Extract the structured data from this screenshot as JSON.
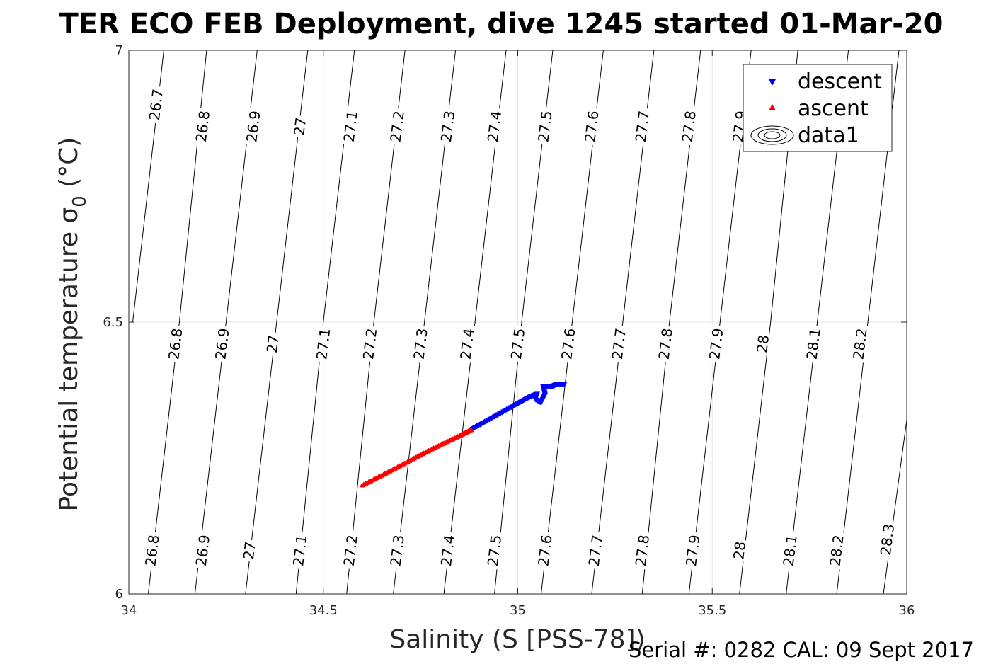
{
  "title": "TER ECO FEB Deployment, dive 1245 started 01-Mar-20",
  "footer": "Serial #: 0282  CAL: 09 Sept 2017",
  "colors": {
    "descent": "#0000ff",
    "ascent": "#ff0000",
    "contour": "#000000",
    "grid": "#e6e6e6"
  },
  "chart_data": {
    "type": "scatter",
    "xlabel": "Salinity (S [PSS-78])",
    "ylabel": "Potential temperature σ0 (°C)",
    "xlim": [
      34,
      36
    ],
    "ylim": [
      6,
      7
    ],
    "xticks": [
      34,
      34.5,
      35,
      35.5,
      36
    ],
    "xtick_labels": [
      "34",
      "34.5",
      "35",
      "35.5",
      "36"
    ],
    "yticks": [
      6,
      6.5,
      7
    ],
    "ytick_labels": [
      "6",
      "6.5",
      "7"
    ],
    "grid": true,
    "legend_placement": "top-right",
    "legend": [
      "descent",
      "ascent",
      "data1"
    ],
    "series": [
      {
        "name": "descent",
        "marker": "triangle-down",
        "color": "#0000ff",
        "points": [
          [
            34.88,
            6.302
          ],
          [
            34.92,
            6.318
          ],
          [
            34.96,
            6.334
          ],
          [
            35.0,
            6.35
          ],
          [
            35.03,
            6.362
          ],
          [
            35.05,
            6.368
          ],
          [
            35.045,
            6.358
          ],
          [
            35.06,
            6.352
          ],
          [
            35.07,
            6.366
          ],
          [
            35.065,
            6.382
          ],
          [
            35.09,
            6.382
          ],
          [
            35.1,
            6.386
          ],
          [
            35.12,
            6.386
          ]
        ]
      },
      {
        "name": "ascent",
        "marker": "triangle-up",
        "color": "#ff0000",
        "points": [
          [
            34.6,
            6.2
          ],
          [
            34.65,
            6.218
          ],
          [
            34.7,
            6.237
          ],
          [
            34.75,
            6.256
          ],
          [
            34.8,
            6.274
          ],
          [
            34.85,
            6.291
          ],
          [
            34.88,
            6.302
          ]
        ]
      }
    ],
    "contours": [
      {
        "level": "26.7",
        "line": [
          [
            34.01,
            6.5
          ],
          [
            34.09,
            7.0
          ]
        ]
      },
      {
        "level": "26.8",
        "line": [
          [
            34.05,
            6.0
          ],
          [
            34.13,
            6.5
          ],
          [
            34.2,
            7.0
          ]
        ]
      },
      {
        "level": "26.9",
        "line": [
          [
            34.17,
            6.0
          ],
          [
            34.25,
            6.5
          ],
          [
            34.33,
            7.0
          ]
        ]
      },
      {
        "level": "27",
        "line": [
          [
            34.3,
            6.0
          ],
          [
            34.38,
            6.5
          ],
          [
            34.46,
            7.0
          ]
        ]
      },
      {
        "level": "27.1",
        "line": [
          [
            34.43,
            6.0
          ],
          [
            34.5,
            6.5
          ],
          [
            34.58,
            7.0
          ]
        ]
      },
      {
        "level": "27.2",
        "line": [
          [
            34.56,
            6.0
          ],
          [
            34.63,
            6.5
          ],
          [
            34.71,
            7.0
          ]
        ]
      },
      {
        "level": "27.3",
        "line": [
          [
            34.68,
            6.0
          ],
          [
            34.76,
            6.5
          ],
          [
            34.84,
            7.0
          ]
        ]
      },
      {
        "level": "27.4",
        "line": [
          [
            34.81,
            6.0
          ],
          [
            34.89,
            6.5
          ],
          [
            34.97,
            7.0
          ]
        ]
      },
      {
        "level": "27.5",
        "line": [
          [
            34.94,
            6.0
          ],
          [
            35.01,
            6.5
          ],
          [
            35.09,
            7.0
          ]
        ]
      },
      {
        "level": "27.6",
        "line": [
          [
            35.06,
            6.0
          ],
          [
            35.14,
            6.5
          ],
          [
            35.22,
            7.0
          ]
        ]
      },
      {
        "level": "27.7",
        "line": [
          [
            35.19,
            6.0
          ],
          [
            35.27,
            6.5
          ],
          [
            35.35,
            7.0
          ]
        ]
      },
      {
        "level": "27.8",
        "line": [
          [
            35.32,
            6.0
          ],
          [
            35.39,
            6.5
          ],
          [
            35.47,
            7.0
          ]
        ]
      },
      {
        "level": "27.9",
        "line": [
          [
            35.44,
            6.0
          ],
          [
            35.52,
            6.5
          ],
          [
            35.6,
            7.0
          ]
        ]
      },
      {
        "level": "28",
        "line": [
          [
            35.57,
            6.0
          ],
          [
            35.65,
            6.5
          ],
          [
            35.72,
            7.0
          ]
        ]
      },
      {
        "level": "28.1",
        "line": [
          [
            35.69,
            6.0
          ],
          [
            35.77,
            6.5
          ],
          [
            35.85,
            7.0
          ]
        ]
      },
      {
        "level": "28.2",
        "line": [
          [
            35.82,
            6.0
          ],
          [
            35.9,
            6.5
          ],
          [
            35.98,
            7.0
          ]
        ]
      },
      {
        "level": "28.3",
        "line": [
          [
            35.94,
            6.0
          ],
          [
            36.0,
            6.32
          ]
        ]
      }
    ],
    "contour_labels": [
      {
        "text": "26.7",
        "at": [
          34.07,
          6.9
        ]
      },
      {
        "text": "26.8",
        "at": [
          34.19,
          6.86
        ]
      },
      {
        "text": "26.9",
        "at": [
          34.32,
          6.86
        ]
      },
      {
        "text": "27",
        "at": [
          34.44,
          6.86
        ]
      },
      {
        "text": "27.1",
        "at": [
          34.57,
          6.86
        ]
      },
      {
        "text": "27.2",
        "at": [
          34.69,
          6.86
        ]
      },
      {
        "text": "27.3",
        "at": [
          34.82,
          6.86
        ]
      },
      {
        "text": "27.4",
        "at": [
          34.94,
          6.86
        ]
      },
      {
        "text": "27.5",
        "at": [
          35.07,
          6.86
        ]
      },
      {
        "text": "27.6",
        "at": [
          35.19,
          6.86
        ]
      },
      {
        "text": "27.7",
        "at": [
          35.32,
          6.86
        ]
      },
      {
        "text": "27.8",
        "at": [
          35.44,
          6.86
        ]
      },
      {
        "text": "27.9",
        "at": [
          35.57,
          6.86
        ]
      },
      {
        "text": "28.2",
        "at": [
          35.94,
          6.86
        ]
      },
      {
        "text": "26.8",
        "at": [
          34.12,
          6.46
        ]
      },
      {
        "text": "26.9",
        "at": [
          34.24,
          6.46
        ]
      },
      {
        "text": "27",
        "at": [
          34.37,
          6.46
        ]
      },
      {
        "text": "27.1",
        "at": [
          34.5,
          6.46
        ]
      },
      {
        "text": "27.2",
        "at": [
          34.62,
          6.46
        ]
      },
      {
        "text": "27.3",
        "at": [
          34.75,
          6.46
        ]
      },
      {
        "text": "27.4",
        "at": [
          34.87,
          6.46
        ]
      },
      {
        "text": "27.5",
        "at": [
          35.0,
          6.46
        ]
      },
      {
        "text": "27.6",
        "at": [
          35.13,
          6.46
        ]
      },
      {
        "text": "27.7",
        "at": [
          35.26,
          6.46
        ]
      },
      {
        "text": "27.8",
        "at": [
          35.38,
          6.46
        ]
      },
      {
        "text": "27.9",
        "at": [
          35.51,
          6.46
        ]
      },
      {
        "text": "28",
        "at": [
          35.63,
          6.46
        ]
      },
      {
        "text": "28.1",
        "at": [
          35.76,
          6.46
        ]
      },
      {
        "text": "28.2",
        "at": [
          35.88,
          6.46
        ]
      },
      {
        "text": "26.8",
        "at": [
          34.06,
          6.08
        ]
      },
      {
        "text": "26.9",
        "at": [
          34.19,
          6.08
        ]
      },
      {
        "text": "27",
        "at": [
          34.31,
          6.08
        ]
      },
      {
        "text": "27.1",
        "at": [
          34.44,
          6.08
        ]
      },
      {
        "text": "27.2",
        "at": [
          34.57,
          6.08
        ]
      },
      {
        "text": "27.3",
        "at": [
          34.69,
          6.08
        ]
      },
      {
        "text": "27.4",
        "at": [
          34.82,
          6.08
        ]
      },
      {
        "text": "27.5",
        "at": [
          34.94,
          6.08
        ]
      },
      {
        "text": "27.6",
        "at": [
          35.07,
          6.08
        ]
      },
      {
        "text": "27.7",
        "at": [
          35.2,
          6.08
        ]
      },
      {
        "text": "27.8",
        "at": [
          35.32,
          6.08
        ]
      },
      {
        "text": "27.9",
        "at": [
          35.45,
          6.08
        ]
      },
      {
        "text": "28",
        "at": [
          35.57,
          6.08
        ]
      },
      {
        "text": "28.1",
        "at": [
          35.7,
          6.08
        ]
      },
      {
        "text": "28.2",
        "at": [
          35.82,
          6.08
        ]
      },
      {
        "text": "28.3",
        "at": [
          35.95,
          6.1
        ]
      }
    ]
  }
}
